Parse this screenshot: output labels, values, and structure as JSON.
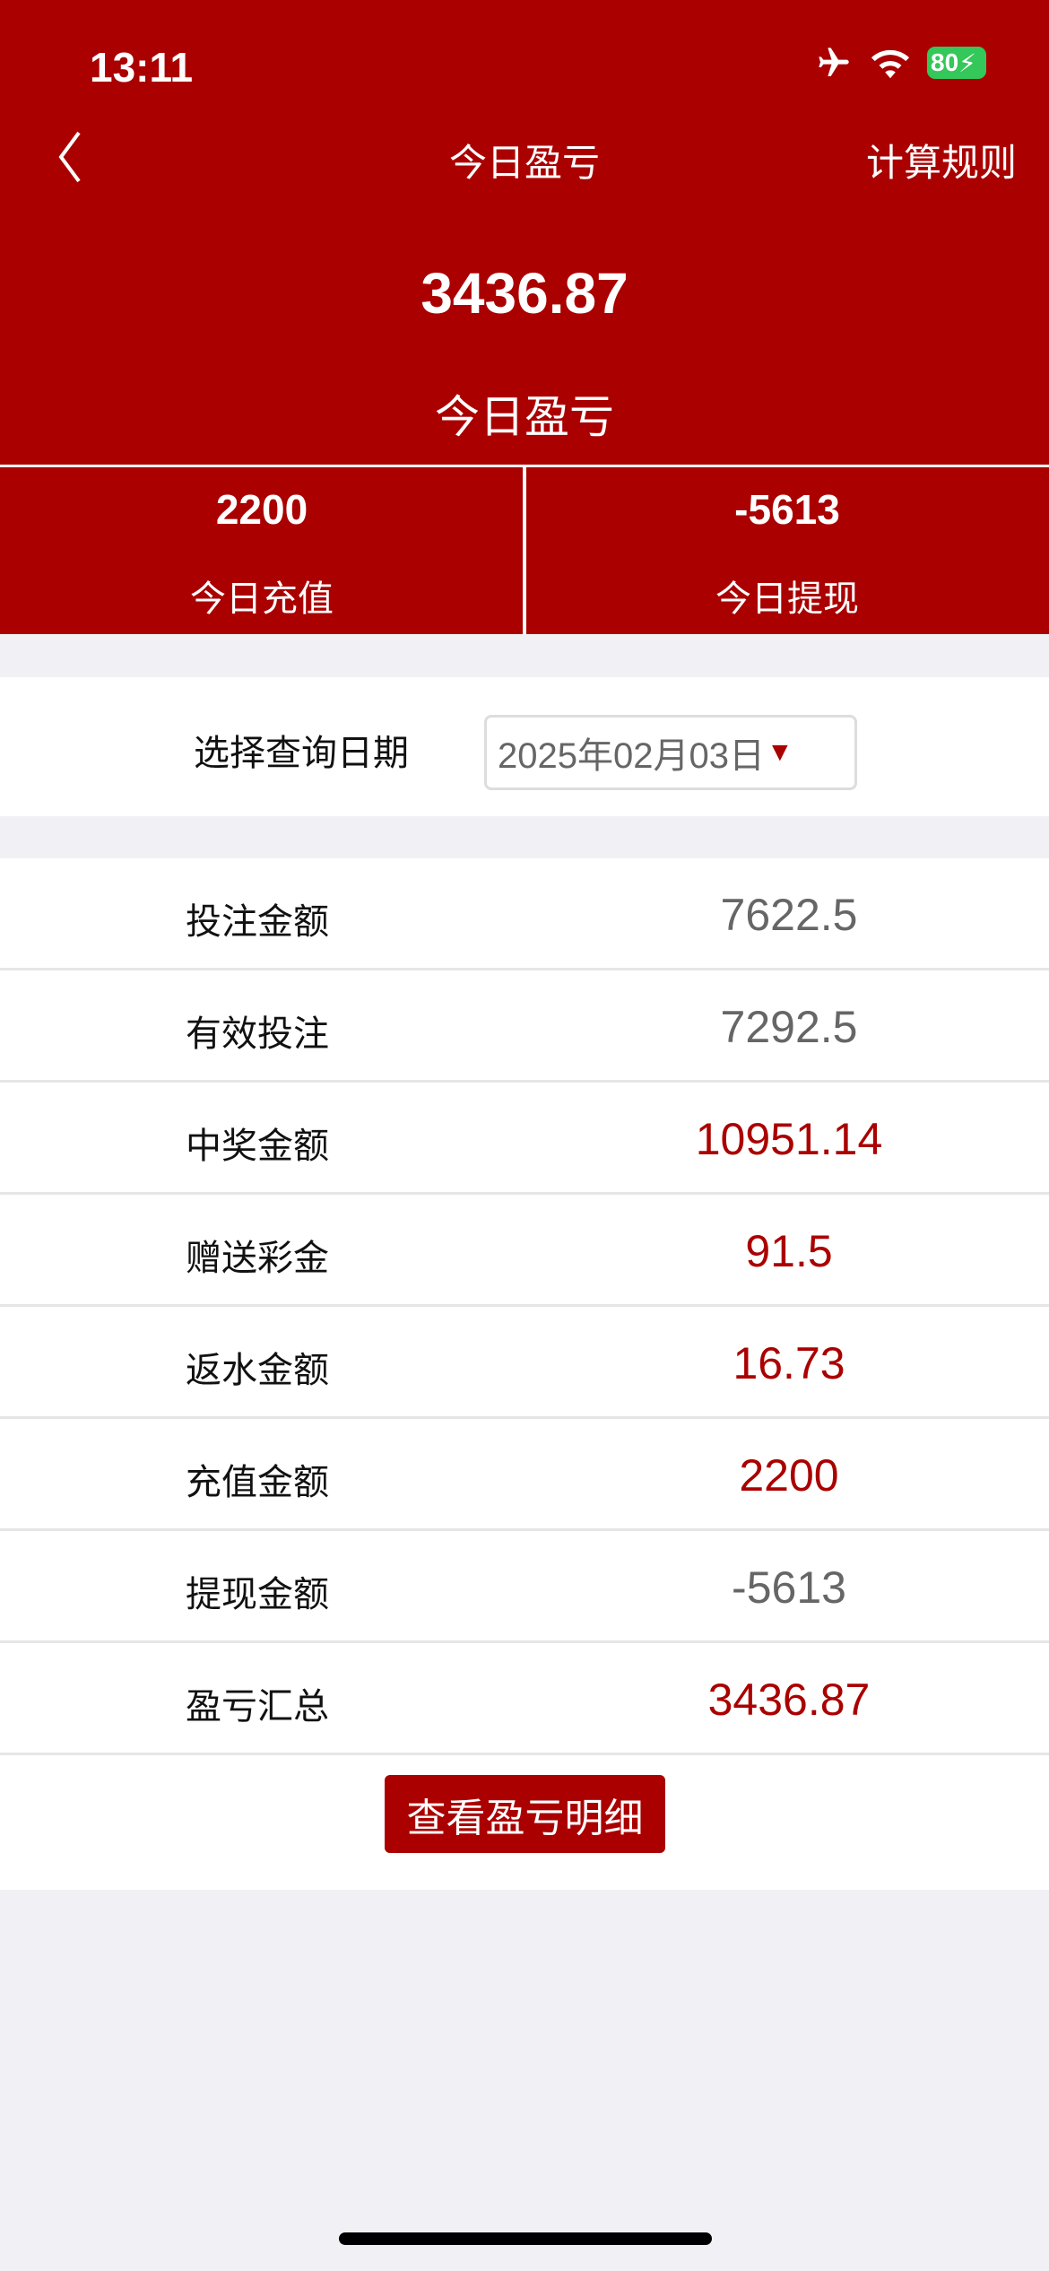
{
  "status_bar": {
    "time": "13:11",
    "battery": "80",
    "icons": [
      "airplane-icon",
      "wifi-icon",
      "battery-charging-icon"
    ]
  },
  "nav": {
    "title": "今日盈亏",
    "right": "计算规则",
    "back_icon": "chevron-left-icon"
  },
  "summary": {
    "value": "3436.87",
    "label": "今日盈亏"
  },
  "stats": [
    {
      "value": "2200",
      "label": "今日充值"
    },
    {
      "value": "-5613",
      "label": "今日提现"
    }
  ],
  "date": {
    "label": "选择查询日期",
    "value": "2025年02月03日",
    "arrow": "▼"
  },
  "rows": [
    {
      "label": "投注金额",
      "value": "7622.5",
      "color": "#666666"
    },
    {
      "label": "有效投注",
      "value": "7292.5",
      "color": "#666666"
    },
    {
      "label": "中奖金额",
      "value": "10951.14",
      "color": "#aa0000"
    },
    {
      "label": "赠送彩金",
      "value": "91.5",
      "color": "#aa0000"
    },
    {
      "label": "返水金额",
      "value": "16.73",
      "color": "#aa0000"
    },
    {
      "label": "充值金额",
      "value": "2200",
      "color": "#aa0000"
    },
    {
      "label": "提现金额",
      "value": "-5613",
      "color": "#666666"
    },
    {
      "label": "盈亏汇总",
      "value": "3436.87",
      "color": "#aa0000"
    }
  ],
  "button": "查看盈亏明细",
  "colors": {
    "brand": "#aa0000",
    "background": "#f1f1f5"
  }
}
